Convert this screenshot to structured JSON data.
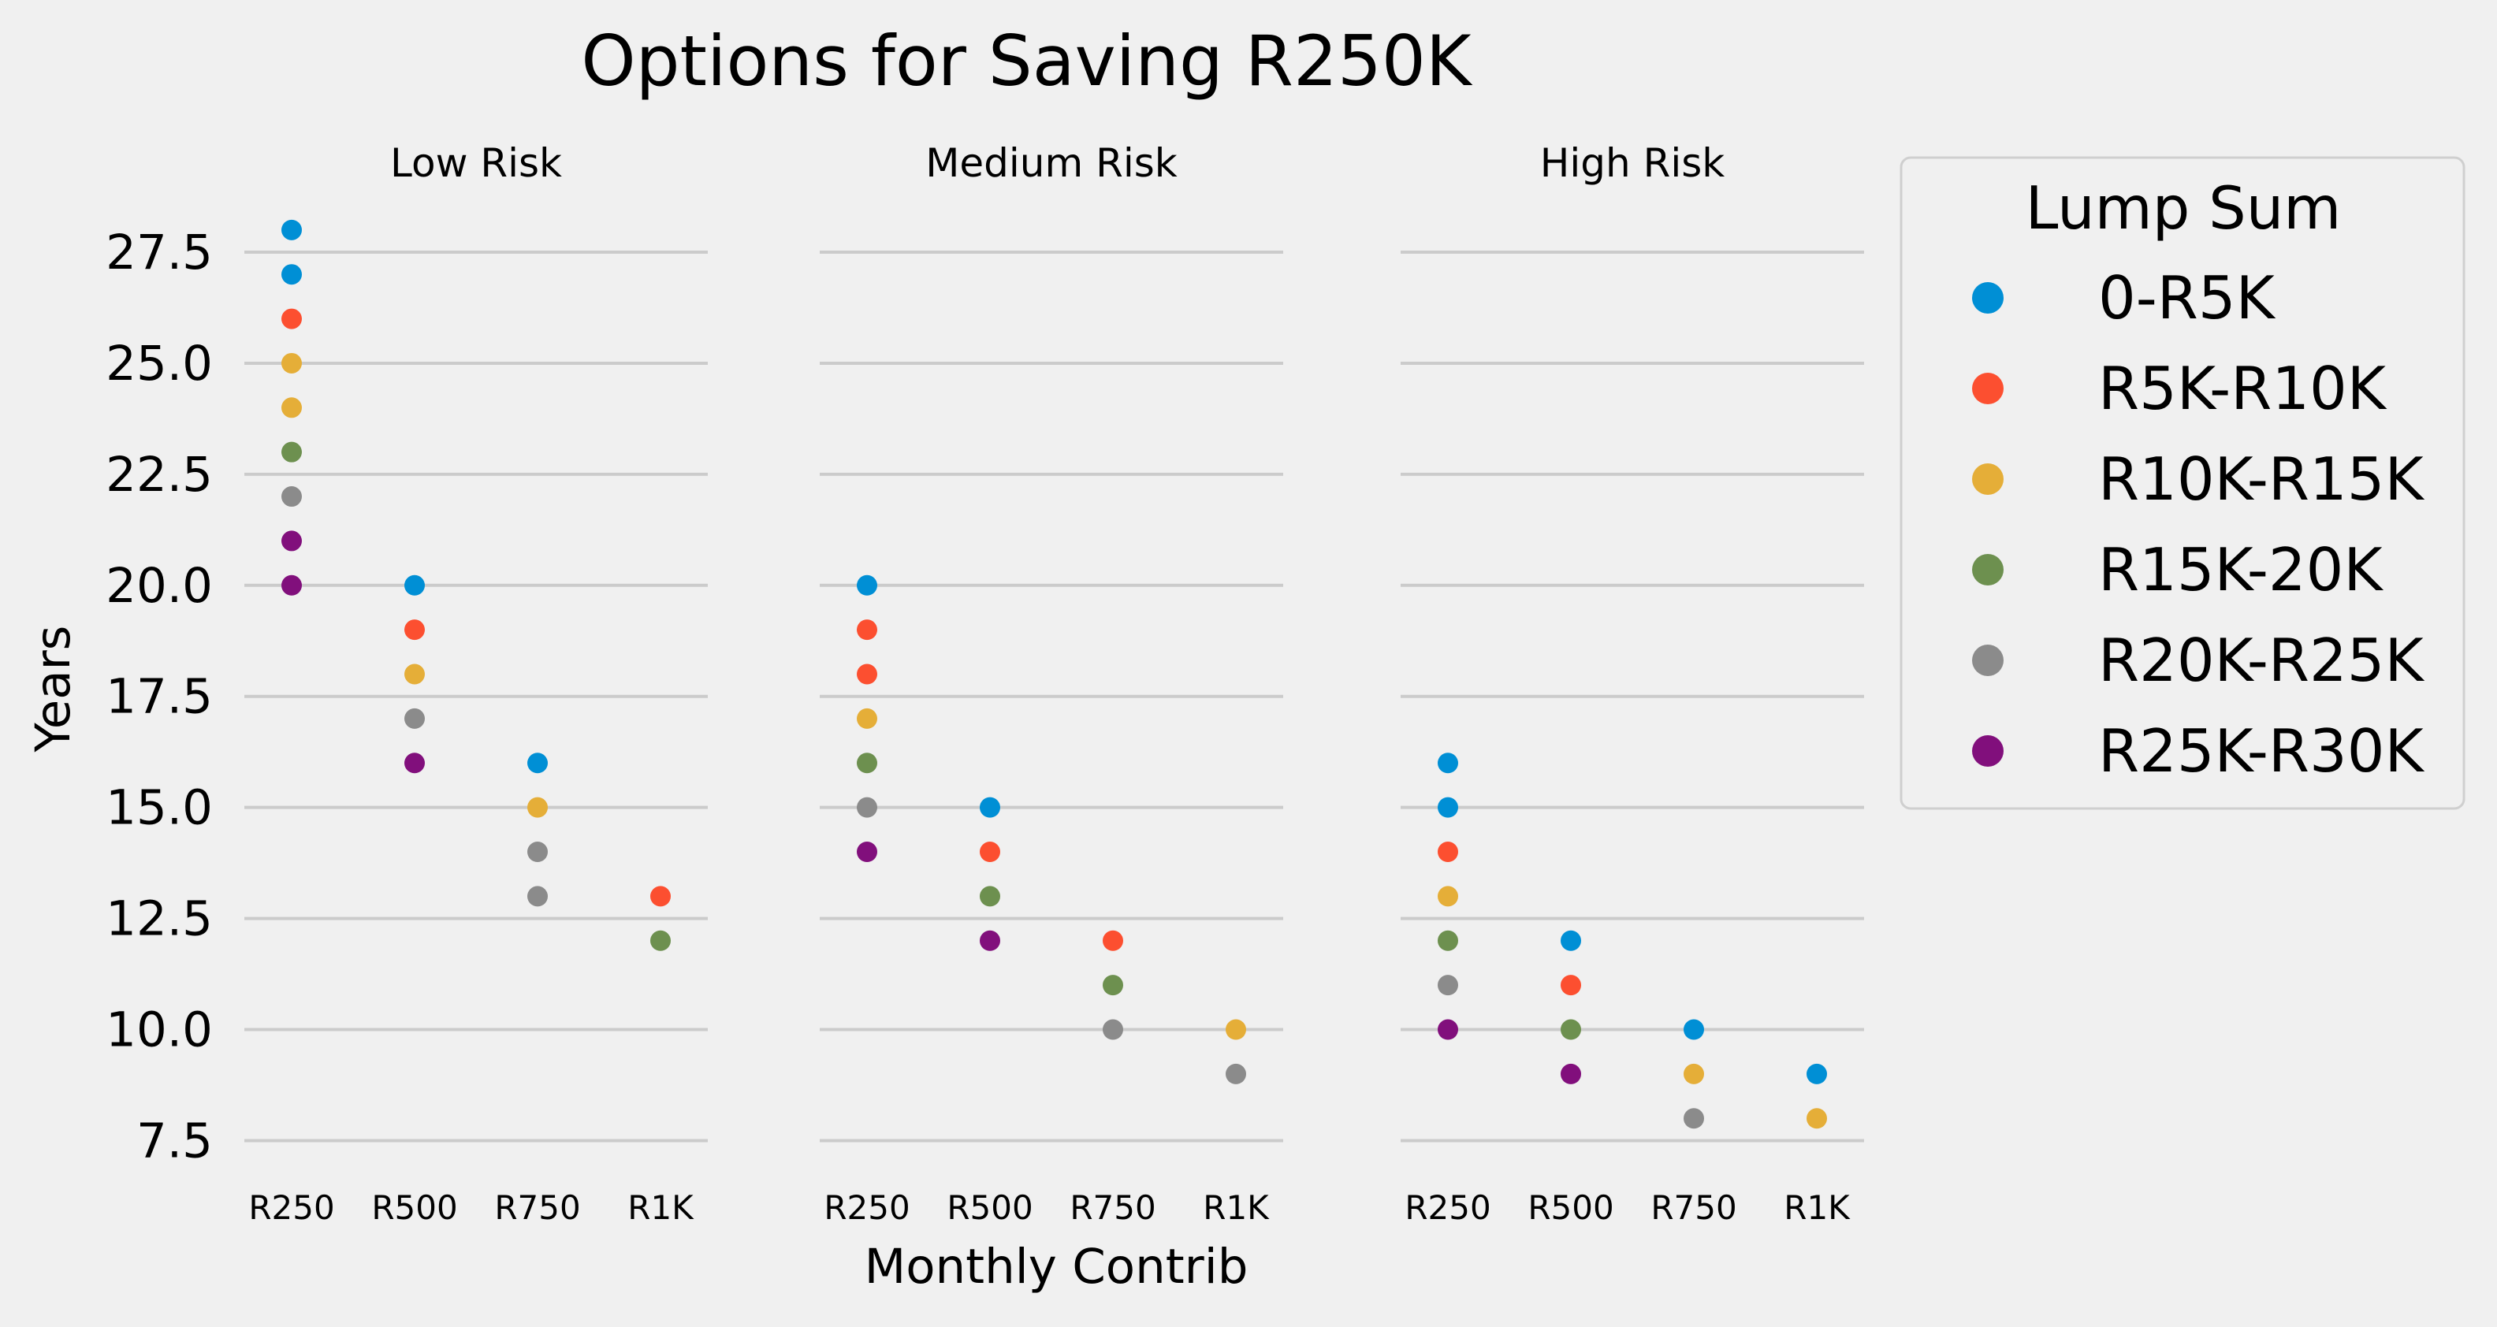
{
  "chart_data": {
    "type": "scatter",
    "title": "Options for Saving R250K",
    "xlabel": "Monthly Contrib",
    "ylabel": "Years",
    "categories": [
      "R250",
      "R500",
      "R750",
      "R1K"
    ],
    "yticks": [
      "7.5",
      "10.0",
      "12.5",
      "15.0",
      "17.5",
      "20.0",
      "22.5",
      "25.0",
      "27.5"
    ],
    "ylim": [
      7.1,
      28.6
    ],
    "grid": "horizontal",
    "legend_title": "Lump Sum",
    "legend_position": "right",
    "series_meta": [
      {
        "name": "0-R5K",
        "color": "#008fd5"
      },
      {
        "name": "R5K-R10K",
        "color": "#fc4f30"
      },
      {
        "name": "R10K-R15K",
        "color": "#e5ae38"
      },
      {
        "name": "R15K-20K",
        "color": "#6d904f"
      },
      {
        "name": "R20K-R25K",
        "color": "#8b8b8b"
      },
      {
        "name": "R25K-R30K",
        "color": "#810f7c"
      }
    ],
    "panels": [
      {
        "title": "Low Risk",
        "points": [
          {
            "x": "R250",
            "y": 28,
            "series": 0
          },
          {
            "x": "R250",
            "y": 27,
            "series": 0
          },
          {
            "x": "R250",
            "y": 26,
            "series": 1
          },
          {
            "x": "R250",
            "y": 25,
            "series": 2
          },
          {
            "x": "R250",
            "y": 24,
            "series": 2
          },
          {
            "x": "R250",
            "y": 23,
            "series": 3
          },
          {
            "x": "R250",
            "y": 22,
            "series": 4
          },
          {
            "x": "R250",
            "y": 21,
            "series": 5
          },
          {
            "x": "R250",
            "y": 20,
            "series": 5
          },
          {
            "x": "R500",
            "y": 20,
            "series": 0
          },
          {
            "x": "R500",
            "y": 19,
            "series": 1
          },
          {
            "x": "R500",
            "y": 18,
            "series": 2
          },
          {
            "x": "R500",
            "y": 17,
            "series": 4
          },
          {
            "x": "R500",
            "y": 16,
            "series": 5
          },
          {
            "x": "R750",
            "y": 16,
            "series": 0
          },
          {
            "x": "R750",
            "y": 15,
            "series": 2
          },
          {
            "x": "R750",
            "y": 14,
            "series": 4
          },
          {
            "x": "R750",
            "y": 13,
            "series": 4
          },
          {
            "x": "R1K",
            "y": 13,
            "series": 1
          },
          {
            "x": "R1K",
            "y": 12,
            "series": 3
          }
        ]
      },
      {
        "title": "Medium Risk",
        "points": [
          {
            "x": "R250",
            "y": 20,
            "series": 0
          },
          {
            "x": "R250",
            "y": 19,
            "series": 1
          },
          {
            "x": "R250",
            "y": 18,
            "series": 1
          },
          {
            "x": "R250",
            "y": 17,
            "series": 2
          },
          {
            "x": "R250",
            "y": 16,
            "series": 3
          },
          {
            "x": "R250",
            "y": 15,
            "series": 4
          },
          {
            "x": "R250",
            "y": 14,
            "series": 5
          },
          {
            "x": "R500",
            "y": 15,
            "series": 0
          },
          {
            "x": "R500",
            "y": 14,
            "series": 1
          },
          {
            "x": "R500",
            "y": 13,
            "series": 3
          },
          {
            "x": "R500",
            "y": 12,
            "series": 5
          },
          {
            "x": "R750",
            "y": 12,
            "series": 1
          },
          {
            "x": "R750",
            "y": 11,
            "series": 3
          },
          {
            "x": "R750",
            "y": 10,
            "series": 4
          },
          {
            "x": "R1K",
            "y": 10,
            "series": 2
          },
          {
            "x": "R1K",
            "y": 9,
            "series": 4
          }
        ]
      },
      {
        "title": "High Risk",
        "points": [
          {
            "x": "R250",
            "y": 16,
            "series": 0
          },
          {
            "x": "R250",
            "y": 15,
            "series": 0
          },
          {
            "x": "R250",
            "y": 14,
            "series": 1
          },
          {
            "x": "R250",
            "y": 13,
            "series": 2
          },
          {
            "x": "R250",
            "y": 12,
            "series": 3
          },
          {
            "x": "R250",
            "y": 11,
            "series": 4
          },
          {
            "x": "R250",
            "y": 10,
            "series": 5
          },
          {
            "x": "R500",
            "y": 12,
            "series": 0
          },
          {
            "x": "R500",
            "y": 11,
            "series": 1
          },
          {
            "x": "R500",
            "y": 10,
            "series": 3
          },
          {
            "x": "R500",
            "y": 9,
            "series": 5
          },
          {
            "x": "R750",
            "y": 10,
            "series": 0
          },
          {
            "x": "R750",
            "y": 9,
            "series": 2
          },
          {
            "x": "R750",
            "y": 8,
            "series": 4
          },
          {
            "x": "R1K",
            "y": 9,
            "series": 0
          },
          {
            "x": "R1K",
            "y": 8,
            "series": 2
          }
        ]
      }
    ]
  }
}
